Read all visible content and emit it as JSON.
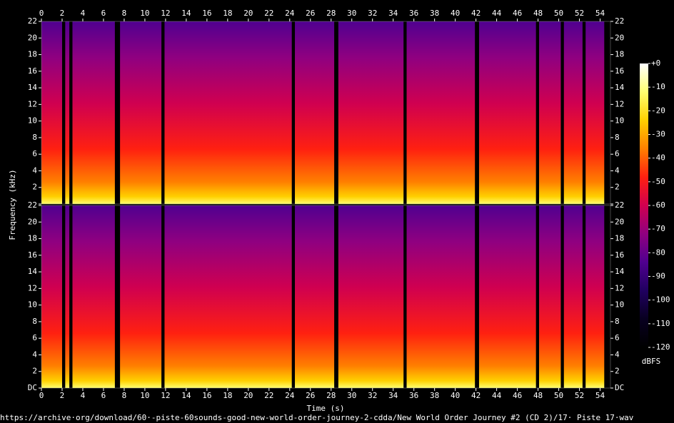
{
  "chart_data": {
    "type": "spectrogram",
    "xlabel": "Time (s)",
    "ylabel": "Frequency (kHz)",
    "footer": "https://archive·org/download/60·-piste-60sounds-good-new-world-order-journey-2-cdda/New World Order Journey #2 (CD 2)/17· Piste 17·wav",
    "channels": 2,
    "xlim": [
      0,
      55
    ],
    "xticks": [
      0,
      2,
      4,
      6,
      8,
      10,
      12,
      14,
      16,
      18,
      20,
      22,
      24,
      26,
      28,
      30,
      32,
      34,
      36,
      38,
      40,
      42,
      44,
      46,
      48,
      50,
      52,
      54
    ],
    "ylim": [
      0,
      22
    ],
    "yticks": [
      {
        "value": 0,
        "label": "DC"
      },
      2,
      4,
      6,
      8,
      10,
      12,
      14,
      16,
      18,
      20,
      22
    ],
    "segments": [
      [
        0,
        2.0
      ],
      [
        2.3,
        2.7
      ],
      [
        3.0,
        7.1
      ],
      [
        7.6,
        11.6
      ],
      [
        11.9,
        24.2
      ],
      [
        24.5,
        28.3
      ],
      [
        28.7,
        35.0
      ],
      [
        35.3,
        41.9
      ],
      [
        42.3,
        47.8
      ],
      [
        48.1,
        50.2
      ],
      [
        50.5,
        52.3
      ],
      [
        52.6,
        54.4
      ]
    ],
    "colorbar": {
      "label": "dBFS",
      "lim": [
        -120,
        0
      ],
      "ticks": [
        {
          "value": 0,
          "label": "+0"
        },
        -10,
        -20,
        -30,
        -40,
        -50,
        -60,
        -70,
        -80,
        -90,
        -100,
        -110,
        -120
      ],
      "colormap": [
        "#ffffff",
        "#ffff70",
        "#ffd000",
        "#ff8000",
        "#ff2010",
        "#d00050",
        "#900080",
        "#500090",
        "#200060",
        "#080020",
        "#000000"
      ]
    }
  }
}
